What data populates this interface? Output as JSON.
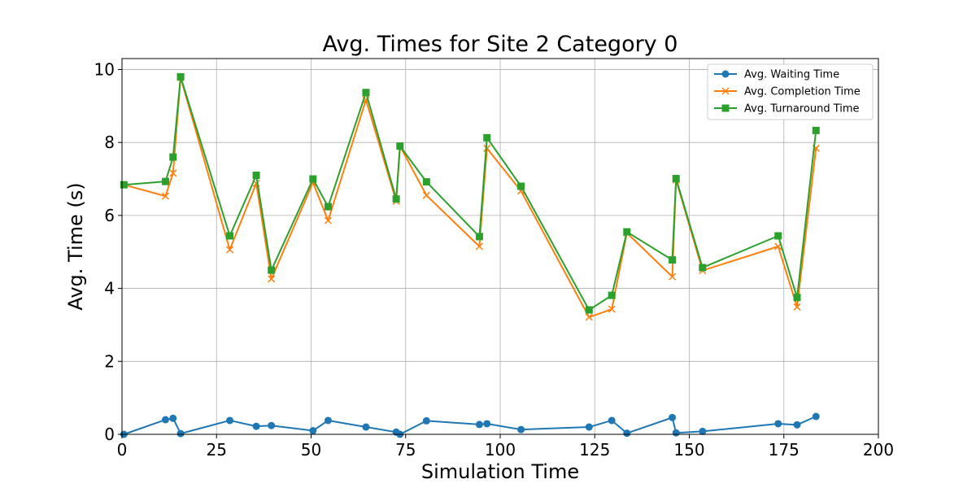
{
  "chart_data": {
    "type": "line",
    "title": "Avg. Times for Site 2 Category 0",
    "xlabel": "Simulation Time",
    "ylabel": "Avg. Time (s)",
    "xlim": [
      0,
      200
    ],
    "ylim": [
      0,
      10.3
    ],
    "x_ticks": [
      0,
      25,
      50,
      75,
      100,
      125,
      150,
      175,
      200
    ],
    "y_ticks": [
      0,
      2,
      4,
      6,
      8,
      10
    ],
    "grid": true,
    "legend_position": "top-right",
    "x": [
      0.5,
      11.5,
      13.5,
      15.5,
      28.5,
      35.5,
      39.5,
      50.5,
      54.5,
      64.5,
      72.5,
      73.5,
      80.5,
      94.5,
      96.5,
      105.5,
      123.5,
      129.5,
      133.5,
      145.5,
      146.5,
      153.5,
      173.5,
      178.5,
      183.5
    ],
    "series": [
      {
        "name": "Avg. Waiting Time",
        "color": "#1f77b4",
        "marker": "circle",
        "values": [
          0.0,
          0.4,
          0.44,
          0.02,
          0.38,
          0.22,
          0.24,
          0.1,
          0.38,
          0.2,
          0.06,
          0.0,
          0.37,
          0.27,
          0.29,
          0.13,
          0.2,
          0.38,
          0.03,
          0.46,
          0.04,
          0.08,
          0.29,
          0.26,
          0.49
        ]
      },
      {
        "name": "Avg. Completion Time",
        "color": "#ff7f0e",
        "marker": "x",
        "values": [
          6.84,
          6.53,
          7.16,
          9.78,
          5.06,
          6.88,
          4.26,
          6.9,
          5.86,
          9.17,
          6.39,
          7.9,
          6.55,
          5.15,
          7.84,
          6.67,
          3.21,
          3.43,
          5.52,
          4.32,
          6.97,
          4.49,
          5.15,
          3.49,
          7.84
        ]
      },
      {
        "name": "Avg. Turnaround Time",
        "color": "#2ca02c",
        "marker": "square",
        "values": [
          6.84,
          6.93,
          7.6,
          9.8,
          5.44,
          7.1,
          4.5,
          7.0,
          6.24,
          9.37,
          6.45,
          7.9,
          6.92,
          5.42,
          8.13,
          6.8,
          3.41,
          3.81,
          5.55,
          4.78,
          7.01,
          4.57,
          5.44,
          3.75,
          8.33
        ]
      }
    ]
  }
}
